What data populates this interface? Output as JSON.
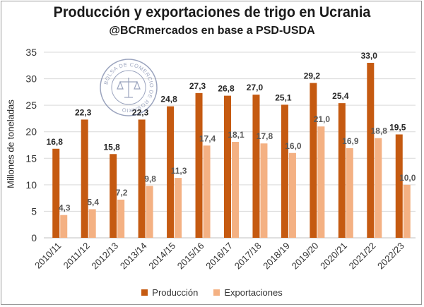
{
  "title": "Producción y exportaciones de trigo en Ucrania",
  "subtitle": "@BCRmercados en base a PSD-USDA",
  "watermark": {
    "text": "BOLSA DE COMERCIO DE ROSARIO",
    "color": "#4a5a8a"
  },
  "colors": {
    "produccion": "#c55a11",
    "exportaciones": "#f4b183"
  },
  "chart_data": {
    "type": "bar",
    "ylabel": "Millones de toneladas",
    "xlabel": "",
    "ylim": [
      0,
      35
    ],
    "yticks": [
      0,
      5,
      10,
      15,
      20,
      25,
      30,
      35
    ],
    "grid": true,
    "legend_position": "bottom",
    "categories": [
      "2010/11",
      "2011/12",
      "2012/13",
      "2013/14",
      "2014/15",
      "2015/16",
      "2016/17",
      "2017/18",
      "2018/19",
      "2019/20",
      "2020/21",
      "2021/22",
      "2022/23"
    ],
    "series": [
      {
        "name": "Producción",
        "values": [
          16.8,
          22.3,
          15.8,
          22.3,
          24.8,
          27.3,
          26.8,
          27.0,
          25.1,
          29.2,
          25.4,
          33.0,
          19.5
        ],
        "labels": [
          "16,8",
          "22,3",
          "15,8",
          "22,3",
          "24,8",
          "27,3",
          "26,8",
          "27,0",
          "25,1",
          "29,2",
          "25,4",
          "33,0",
          "19,5"
        ]
      },
      {
        "name": "Exportaciones",
        "values": [
          4.3,
          5.4,
          7.2,
          9.8,
          11.3,
          17.4,
          18.1,
          17.8,
          16.0,
          21.0,
          16.9,
          18.8,
          10.0
        ],
        "labels": [
          "4,3",
          "5,4",
          "7,2",
          "9,8",
          "11,3",
          "17,4",
          "18,1",
          "17,8",
          "16,0",
          "21,0",
          "16,9",
          "18,8",
          "10,0"
        ]
      }
    ]
  }
}
